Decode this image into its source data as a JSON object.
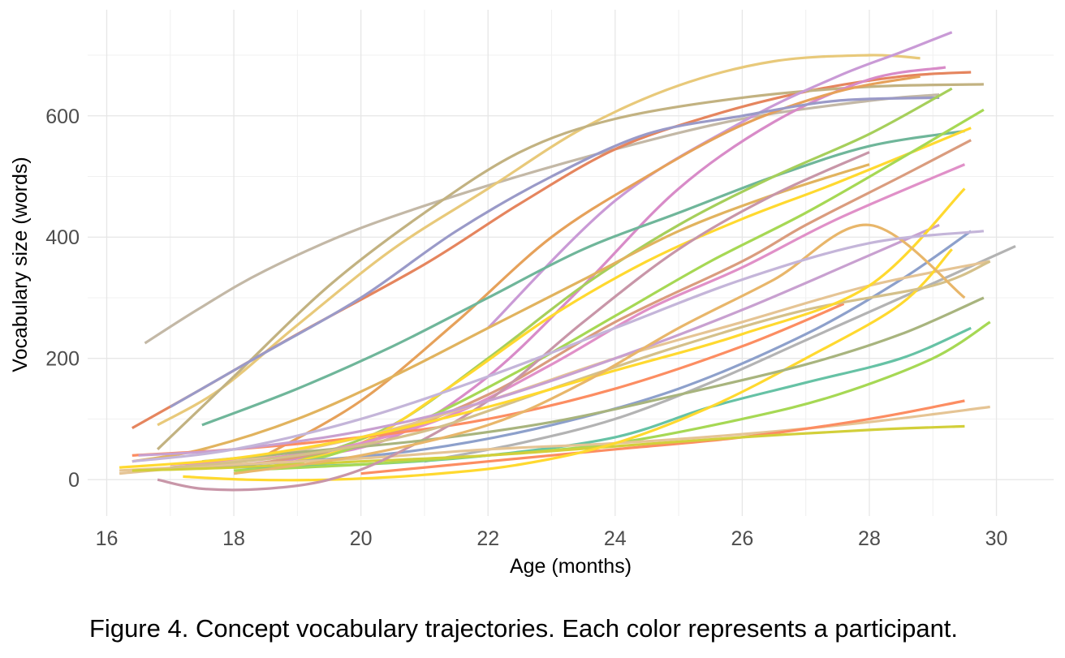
{
  "caption": "Figure 4. Concept vocabulary trajectories. Each color represents a participant.",
  "chart_data": {
    "type": "line",
    "title": "",
    "xlabel": "Age (months)",
    "ylabel": "Vocabulary size (words)",
    "xlim": [
      15.7,
      30.9
    ],
    "ylim": [
      -60,
      775
    ],
    "xticks": [
      16,
      18,
      20,
      22,
      24,
      26,
      28,
      30
    ],
    "yticks": [
      0,
      200,
      400,
      600
    ],
    "grid": true,
    "legend": "none",
    "series": [
      {
        "color": "#c3b8a6",
        "x": [
          16.6,
          17.5,
          18.5,
          20,
          22,
          24,
          26,
          28,
          29.1
        ],
        "y": [
          225,
          285,
          345,
          415,
          485,
          545,
          595,
          625,
          635
        ]
      },
      {
        "color": "#e8c97a",
        "x": [
          16.8,
          17.8,
          19,
          20.5,
          22,
          23.5,
          25,
          26.5,
          28,
          28.8
        ],
        "y": [
          90,
          150,
          255,
          380,
          480,
          580,
          650,
          690,
          700,
          695
        ]
      },
      {
        "color": "#e5855e",
        "x": [
          16.4,
          17.5,
          19,
          21,
          22.5,
          24,
          25.5,
          27,
          28.5,
          29.6
        ],
        "y": [
          85,
          150,
          240,
          355,
          455,
          545,
          600,
          640,
          665,
          672
        ]
      },
      {
        "color": "#c2b281",
        "x": [
          16.8,
          18,
          19.5,
          21,
          22.5,
          24,
          26,
          28,
          29.8
        ],
        "y": [
          50,
          170,
          320,
          440,
          540,
          595,
          630,
          648,
          652
        ]
      },
      {
        "color": "#d88bc8",
        "x": [
          17.5,
          19,
          20.5,
          22,
          23.5,
          25,
          26.5,
          28,
          29.2
        ],
        "y": [
          20,
          35,
          70,
          170,
          320,
          480,
          590,
          660,
          680
        ]
      },
      {
        "color": "#c99ad6",
        "x": [
          22,
          24,
          26,
          27.5,
          28.5,
          29.3
        ],
        "y": [
          250,
          460,
          590,
          665,
          705,
          738
        ]
      },
      {
        "color": "#e6a15a",
        "x": [
          18.5,
          20,
          21.5,
          23,
          24.5,
          26,
          27.5,
          28.8
        ],
        "y": [
          40,
          130,
          260,
          400,
          500,
          585,
          640,
          665
        ]
      },
      {
        "color": "#9a9ac8",
        "x": [
          17,
          18.5,
          20,
          21.5,
          23,
          24.5,
          26,
          27.5,
          29.1
        ],
        "y": [
          120,
          210,
          300,
          410,
          500,
          570,
          600,
          625,
          630
        ]
      },
      {
        "color": "#6fb69a",
        "x": [
          17.5,
          19,
          20.5,
          22,
          23.5,
          25,
          26.5,
          28,
          29.5
        ],
        "y": [
          90,
          150,
          220,
          300,
          380,
          440,
          500,
          550,
          575
        ]
      },
      {
        "color": "#a6cf5b",
        "x": [
          19,
          20.5,
          22,
          23.5,
          25,
          26.5,
          28,
          29.3
        ],
        "y": [
          30,
          90,
          200,
          320,
          420,
          500,
          570,
          645
        ]
      },
      {
        "color": "#ffd92f",
        "x": [
          18.5,
          20,
          21.5,
          23,
          24.5,
          26,
          27.5,
          29.6
        ],
        "y": [
          20,
          60,
          160,
          270,
          360,
          430,
          490,
          580
        ]
      },
      {
        "color": "#a6d854",
        "x": [
          18,
          19.5,
          21,
          22.5,
          24,
          25.5,
          27,
          28.5,
          29.8
        ],
        "y": [
          10,
          40,
          100,
          180,
          270,
          360,
          440,
          530,
          610
        ]
      },
      {
        "color": "#da9c7e",
        "x": [
          18,
          20,
          22,
          24,
          26,
          27,
          28.5,
          29.6
        ],
        "y": [
          20,
          60,
          140,
          260,
          360,
          420,
          500,
          560
        ]
      },
      {
        "color": "#e1b35e",
        "x": [
          16.4,
          17.5,
          19,
          20.5,
          22,
          23.5,
          25,
          26.5,
          28
        ],
        "y": [
          30,
          50,
          100,
          170,
          250,
          330,
          410,
          470,
          520
        ]
      },
      {
        "color": "#e090c8",
        "x": [
          17,
          18.5,
          20,
          21.5,
          23,
          24.5,
          26,
          27.5,
          29.5
        ],
        "y": [
          25,
          35,
          60,
          110,
          190,
          280,
          350,
          430,
          520
        ]
      },
      {
        "color": "#8da0cb",
        "x": [
          17,
          19,
          21,
          23,
          25,
          27,
          28.5,
          29.6
        ],
        "y": [
          20,
          30,
          50,
          90,
          150,
          240,
          330,
          410
        ]
      },
      {
        "color": "#fc8d62",
        "x": [
          16.4,
          18,
          20,
          22,
          24,
          26,
          27.6
        ],
        "y": [
          40,
          50,
          70,
          100,
          150,
          220,
          290
        ]
      },
      {
        "color": "#b3b3b3",
        "x": [
          21,
          22.5,
          24,
          25.5,
          27,
          28.5,
          30.3
        ],
        "y": [
          30,
          60,
          100,
          160,
          230,
          300,
          385
        ]
      },
      {
        "color": "#e5c494",
        "x": [
          16.2,
          18,
          20,
          22,
          24,
          26,
          28,
          29.9
        ],
        "y": [
          10,
          30,
          70,
          130,
          200,
          260,
          320,
          360
        ]
      },
      {
        "color": "#66c2a5",
        "x": [
          18,
          20,
          22,
          24,
          25.5,
          27,
          28.5,
          29.6
        ],
        "y": [
          20,
          25,
          40,
          70,
          120,
          160,
          200,
          250
        ]
      },
      {
        "color": "#a6d854",
        "x": [
          18,
          20,
          22,
          24,
          26,
          27.5,
          29,
          29.9
        ],
        "y": [
          15,
          25,
          40,
          60,
          100,
          140,
          200,
          260
        ]
      },
      {
        "color": "#e5c494",
        "x": [
          16.2,
          18,
          20,
          22,
          24,
          26,
          28,
          29.9
        ],
        "y": [
          15,
          25,
          35,
          50,
          60,
          75,
          95,
          120
        ]
      },
      {
        "color": "#fc8d62",
        "x": [
          20,
          22,
          24,
          26,
          28,
          29.5
        ],
        "y": [
          10,
          30,
          50,
          70,
          100,
          130
        ]
      },
      {
        "color": "#d2cf3a",
        "x": [
          16.4,
          18,
          20,
          22,
          24,
          26,
          28,
          29.5
        ],
        "y": [
          15,
          20,
          30,
          40,
          55,
          70,
          82,
          88
        ]
      },
      {
        "color": "#ffd92f",
        "x": [
          17.2,
          18.2,
          19.5,
          21,
          22.5,
          24,
          25.5,
          27,
          28.5,
          29.3
        ],
        "y": [
          5,
          0,
          0,
          8,
          25,
          60,
          120,
          200,
          290,
          380
        ]
      },
      {
        "color": "#c896a8",
        "x": [
          16.8,
          17.5,
          18.5,
          19.5,
          20.5,
          22,
          23.5,
          25,
          26.5,
          28
        ],
        "y": [
          0,
          -15,
          -15,
          0,
          40,
          130,
          260,
          380,
          470,
          540
        ]
      },
      {
        "color": "#a8b47e",
        "x": [
          17.5,
          19,
          21,
          23,
          25,
          27,
          28.5,
          29.8
        ],
        "y": [
          30,
          45,
          65,
          95,
          140,
          190,
          240,
          300
        ]
      },
      {
        "color": "#d4c08a",
        "x": [
          17,
          19,
          21,
          23,
          25,
          27,
          29,
          29.9
        ],
        "y": [
          20,
          40,
          80,
          150,
          220,
          280,
          320,
          360
        ]
      },
      {
        "color": "#c8a0d0",
        "x": [
          16.5,
          18,
          20,
          22,
          24,
          26,
          28,
          29.1
        ],
        "y": [
          40,
          50,
          80,
          130,
          200,
          280,
          370,
          420
        ]
      },
      {
        "color": "#ffd92f",
        "x": [
          16.2,
          18,
          20,
          22,
          24,
          26,
          28,
          29.5
        ],
        "y": [
          20,
          35,
          70,
          120,
          180,
          240,
          320,
          480
        ]
      },
      {
        "color": "#e8b66a",
        "x": [
          18,
          20,
          22,
          23.5,
          25,
          26.5,
          28,
          29.5
        ],
        "y": [
          10,
          40,
          90,
          160,
          250,
          330,
          420,
          300
        ]
      },
      {
        "color": "#c4b5d9",
        "x": [
          16.4,
          18,
          20,
          22,
          24,
          26,
          28,
          29.8
        ],
        "y": [
          30,
          50,
          100,
          170,
          250,
          330,
          390,
          410
        ]
      }
    ]
  }
}
